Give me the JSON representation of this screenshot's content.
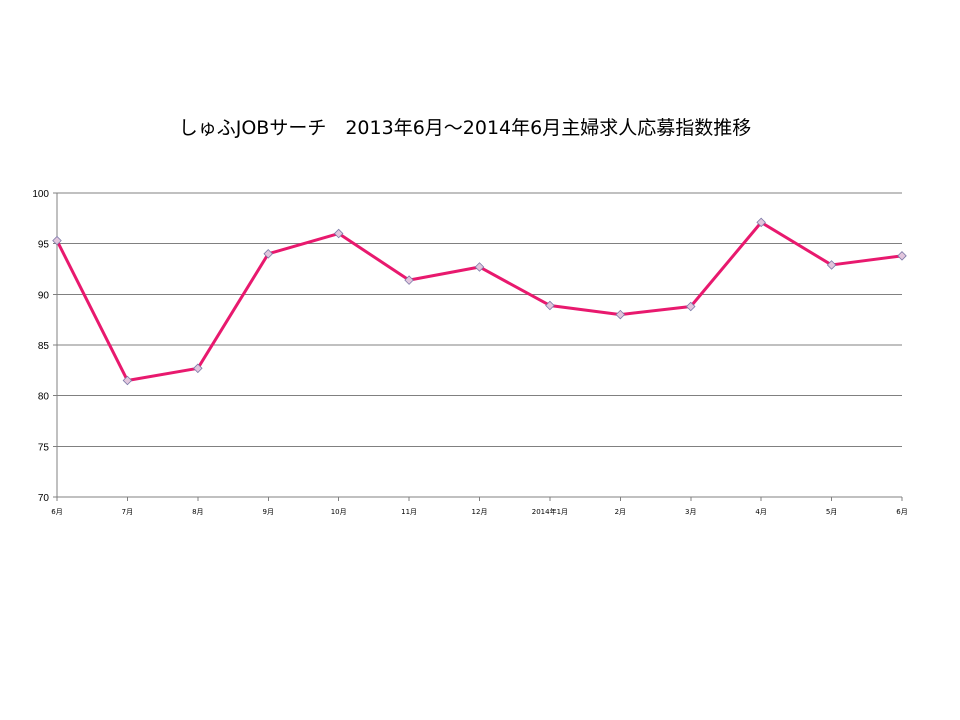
{
  "chart_data": {
    "type": "line",
    "title": "しゅふJOBサーチ　2013年6月～2014年6月主婦求人応募指数推移",
    "categories": [
      "6月",
      "7月",
      "8月",
      "9月",
      "10月",
      "11月",
      "12月",
      "2014年1月",
      "2月",
      "3月",
      "4月",
      "5月",
      "6月"
    ],
    "series": [
      {
        "values": [
          95.3,
          81.5,
          82.7,
          94.0,
          96.0,
          91.4,
          92.7,
          88.9,
          88.0,
          88.8,
          97.1,
          92.9,
          93.8
        ]
      }
    ],
    "ylim": [
      70,
      100
    ],
    "yticks": [
      70,
      75,
      80,
      85,
      90,
      95,
      100
    ],
    "grid": true,
    "legend": "none",
    "colors": {
      "line": "#e8196e",
      "marker_fill": "#e2c6dd",
      "marker_stroke": "#7c7aa8",
      "grid": "#808080",
      "axis": "#808080"
    }
  }
}
